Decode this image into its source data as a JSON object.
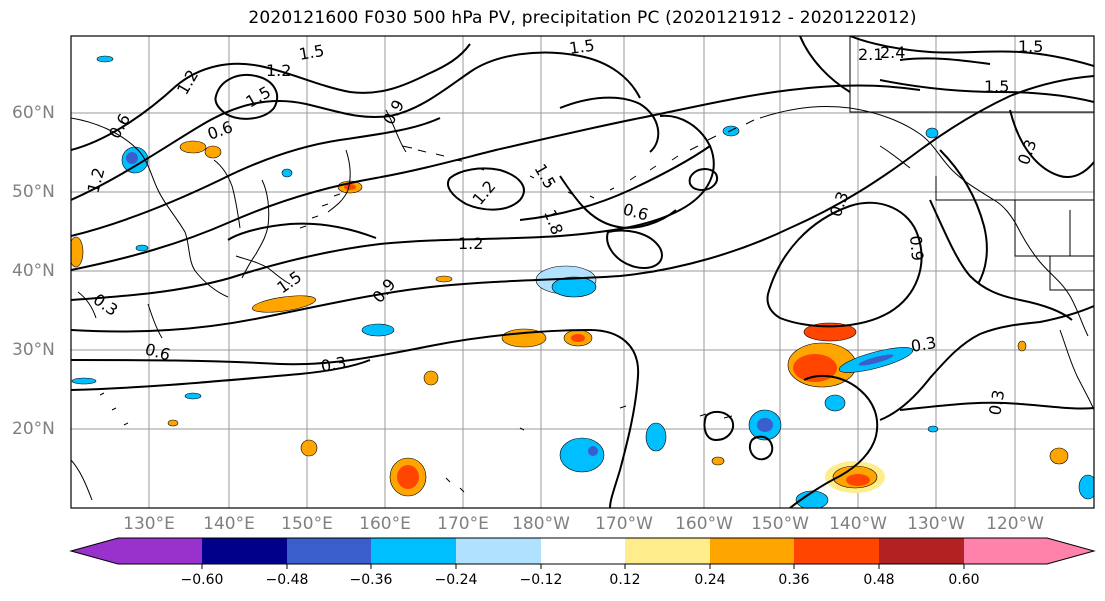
{
  "title": "2020121600 F030 500 hPa PV, precipitation PC (2020121912 - 2020122012)",
  "lat_labels": [
    "60°N",
    "50°N",
    "40°N",
    "30°N",
    "20°N"
  ],
  "lon_labels": [
    "130°E",
    "140°E",
    "150°E",
    "160°E",
    "170°E",
    "180°W",
    "170°W",
    "160°W",
    "150°W",
    "140°W",
    "130°W",
    "120°W"
  ],
  "pv_contour_labels": [
    "1.5",
    "1.2",
    "1.5",
    "1.2",
    "1.5",
    "0.6",
    "0.6",
    "1.2",
    "0.9",
    "1.5",
    "1.8",
    "1.2",
    "0.6",
    "1.2",
    "1.5",
    "0.9",
    "0.3",
    "0.6",
    "0.3",
    "0.3",
    "0.3",
    "0.9",
    "0.3",
    "0.3",
    "2.1",
    "2.4",
    "1.5",
    "1.5"
  ],
  "colorbar": {
    "ticks": [
      "−0.60",
      "−0.48",
      "−0.36",
      "−0.24",
      "−0.12",
      "0.12",
      "0.24",
      "0.36",
      "0.48",
      "0.60"
    ],
    "colors": [
      "#9932cc",
      "#00008b",
      "#3a5fcd",
      "#00bfff",
      "#b0e2ff",
      "#ffffff",
      "#ffec8b",
      "#ffa500",
      "#ff4500",
      "#b22222",
      "#ff82ab"
    ]
  },
  "colors": {
    "land_line": "#000000",
    "grid": "#999999",
    "contour": "#000000",
    "label_gray": "#808080"
  }
}
